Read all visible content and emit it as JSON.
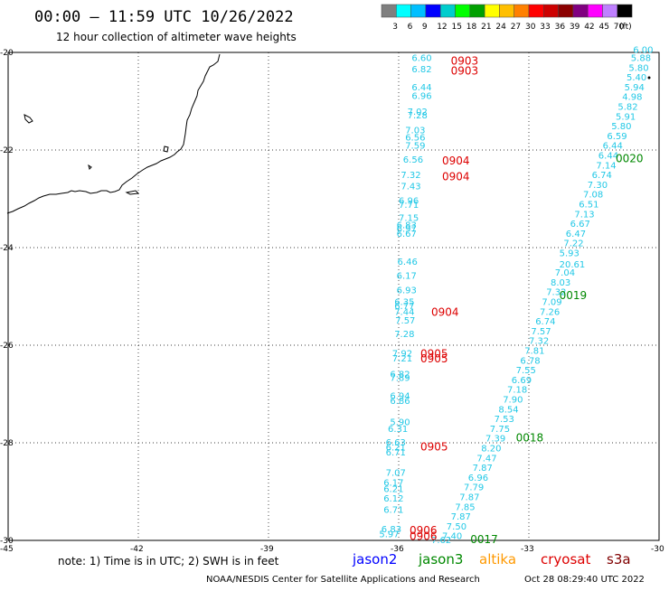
{
  "header": {
    "title": "00:00 – 11:59 UTC 10/26/2022",
    "subtitle": "12 hour collection of altimeter wave heights"
  },
  "colorbar": {
    "colors": [
      "#7f7f7f",
      "#00ffff",
      "#00bfff",
      "#0000ff",
      "#00cdcd",
      "#00ff00",
      "#00a000",
      "#ffff00",
      "#ffbf00",
      "#ff8000",
      "#ff0000",
      "#cd0000",
      "#8b0000",
      "#800080",
      "#ff00ff",
      "#bf80ff",
      "#000000"
    ],
    "labels": [
      "3",
      "6",
      "9",
      "12",
      "15",
      "18",
      "21",
      "24",
      "27",
      "30",
      "33",
      "36",
      "39",
      "42",
      "45",
      "70",
      "(ft)"
    ]
  },
  "chart_data": {
    "type": "scatter",
    "xlim": [
      -45,
      -30
    ],
    "ylim": [
      -30,
      -20
    ],
    "x_ticks": [
      "-45",
      "-42",
      "-39",
      "-36",
      "-33",
      "-30"
    ],
    "y_ticks": [
      "-20",
      "-22",
      "-24",
      "-26",
      "-28",
      "-30"
    ],
    "grid": true,
    "tracks": [
      {
        "satellite": "jason3",
        "points": [
          {
            "x": -35.45,
            "y": -20.12,
            "v": "6.60"
          },
          {
            "x": -35.45,
            "y": -20.35,
            "v": "6.82"
          },
          {
            "x": -35.45,
            "y": -20.72,
            "v": "6.44"
          },
          {
            "x": -35.45,
            "y": -20.9,
            "v": "6.96"
          },
          {
            "x": -35.55,
            "y": -21.22,
            "v": "7.02"
          },
          {
            "x": -35.55,
            "y": -21.3,
            "v": "7.28"
          },
          {
            "x": -35.6,
            "y": -21.6,
            "v": "7.03"
          },
          {
            "x": -35.6,
            "y": -21.75,
            "v": "6.56"
          },
          {
            "x": -35.6,
            "y": -21.92,
            "v": "7.59"
          },
          {
            "x": -35.65,
            "y": -22.2,
            "v": "6.56"
          },
          {
            "x": -35.7,
            "y": -22.52,
            "v": "7.32"
          },
          {
            "x": -35.7,
            "y": -22.75,
            "v": "7.43"
          },
          {
            "x": -35.75,
            "y": -23.05,
            "v": "6.96"
          },
          {
            "x": -35.75,
            "y": -23.13,
            "v": "7.71"
          },
          {
            "x": -35.75,
            "y": -23.4,
            "v": "7.15"
          },
          {
            "x": -35.8,
            "y": -23.55,
            "v": "6.83"
          },
          {
            "x": -35.8,
            "y": -23.62,
            "v": "6.97"
          },
          {
            "x": -35.8,
            "y": -23.72,
            "v": "6.67"
          },
          {
            "x": -35.78,
            "y": -24.3,
            "v": "6.46"
          },
          {
            "x": -35.8,
            "y": -24.58,
            "v": "6.17"
          },
          {
            "x": -35.8,
            "y": -24.88,
            "v": "6.93"
          },
          {
            "x": -35.85,
            "y": -25.12,
            "v": "6.35"
          },
          {
            "x": -35.85,
            "y": -25.2,
            "v": "6.77"
          },
          {
            "x": -35.85,
            "y": -25.32,
            "v": "7.44"
          },
          {
            "x": -35.83,
            "y": -25.5,
            "v": "7.57"
          },
          {
            "x": -35.85,
            "y": -25.78,
            "v": "7.28"
          },
          {
            "x": -35.9,
            "y": -26.18,
            "v": "7.92"
          },
          {
            "x": -35.9,
            "y": -26.28,
            "v": "7.21"
          },
          {
            "x": -35.95,
            "y": -26.6,
            "v": "6.82"
          },
          {
            "x": -35.95,
            "y": -26.68,
            "v": "7.89"
          },
          {
            "x": -35.95,
            "y": -27.05,
            "v": "6.94"
          },
          {
            "x": -35.95,
            "y": -27.15,
            "v": "6.86"
          },
          {
            "x": -35.95,
            "y": -27.58,
            "v": "5.90"
          },
          {
            "x": -36.0,
            "y": -27.72,
            "v": "6.31"
          },
          {
            "x": -36.05,
            "y": -28.0,
            "v": "6.63"
          },
          {
            "x": -36.05,
            "y": -28.1,
            "v": "6.21"
          },
          {
            "x": -36.05,
            "y": -28.2,
            "v": "6.71"
          },
          {
            "x": -36.05,
            "y": -28.62,
            "v": "7.07"
          },
          {
            "x": -36.1,
            "y": -28.82,
            "v": "6.17"
          },
          {
            "x": -36.1,
            "y": -28.95,
            "v": "6.21"
          },
          {
            "x": -36.1,
            "y": -29.15,
            "v": "6.12"
          },
          {
            "x": -36.1,
            "y": -29.38,
            "v": "6.71"
          },
          {
            "x": -36.15,
            "y": -29.78,
            "v": "6.83"
          },
          {
            "x": -36.2,
            "y": -29.88,
            "v": "5.97"
          },
          {
            "x": -30.35,
            "y": -19.95,
            "v": "6.00"
          },
          {
            "x": -30.4,
            "y": -20.12,
            "v": "5.88"
          },
          {
            "x": -30.45,
            "y": -20.32,
            "v": "5.80"
          },
          {
            "x": -30.5,
            "y": -20.52,
            "v": "5.40"
          },
          {
            "x": -30.55,
            "y": -20.72,
            "v": "5.94"
          },
          {
            "x": -30.6,
            "y": -20.92,
            "v": "4.98"
          },
          {
            "x": -30.7,
            "y": -21.12,
            "v": "5.82"
          },
          {
            "x": -30.75,
            "y": -21.32,
            "v": "5.91"
          },
          {
            "x": -30.85,
            "y": -21.52,
            "v": "5.80"
          },
          {
            "x": -30.95,
            "y": -21.72,
            "v": "6.59"
          },
          {
            "x": -31.05,
            "y": -21.92,
            "v": "6.44"
          },
          {
            "x": -31.15,
            "y": -22.12,
            "v": "6.44"
          },
          {
            "x": -31.2,
            "y": -22.32,
            "v": "7.14"
          },
          {
            "x": -31.3,
            "y": -22.52,
            "v": "6.74"
          },
          {
            "x": -31.4,
            "y": -22.72,
            "v": "7.30"
          },
          {
            "x": -31.5,
            "y": -22.92,
            "v": "7.08"
          },
          {
            "x": -31.6,
            "y": -23.12,
            "v": "6.51"
          },
          {
            "x": -31.7,
            "y": -23.32,
            "v": "7.13"
          },
          {
            "x": -31.8,
            "y": -23.52,
            "v": "6.67"
          },
          {
            "x": -31.9,
            "y": -23.72,
            "v": "6.47"
          },
          {
            "x": -31.95,
            "y": -23.92,
            "v": "7.22"
          },
          {
            "x": -32.05,
            "y": -24.12,
            "v": "5.93"
          },
          {
            "x": -32.15,
            "y": -24.52,
            "v": "7.04"
          },
          {
            "x": -32.25,
            "y": -24.72,
            "v": "8.03"
          },
          {
            "x": -32.35,
            "y": -24.92,
            "v": "7.32"
          },
          {
            "x": -32.45,
            "y": -25.12,
            "v": "7.09"
          },
          {
            "x": -32.5,
            "y": -25.32,
            "v": "7.26"
          },
          {
            "x": -32.6,
            "y": -25.52,
            "v": "6.74"
          },
          {
            "x": -32.7,
            "y": -25.72,
            "v": "7.57"
          },
          {
            "x": -32.75,
            "y": -25.92,
            "v": "7.32"
          },
          {
            "x": -32.85,
            "y": -26.12,
            "v": "7.81"
          },
          {
            "x": -32.95,
            "y": -26.32,
            "v": "6.78"
          },
          {
            "x": -33.05,
            "y": -26.52,
            "v": "7.55"
          },
          {
            "x": -33.15,
            "y": -26.72,
            "v": "6.69"
          },
          {
            "x": -33.25,
            "y": -26.92,
            "v": "7.18"
          },
          {
            "x": -33.35,
            "y": -27.12,
            "v": "7.90"
          },
          {
            "x": -33.45,
            "y": -27.32,
            "v": "8.54"
          },
          {
            "x": -33.55,
            "y": -27.52,
            "v": "7.53"
          },
          {
            "x": -33.65,
            "y": -27.72,
            "v": "7.75"
          },
          {
            "x": -33.75,
            "y": -27.92,
            "v": "7.39"
          },
          {
            "x": -33.85,
            "y": -28.12,
            "v": "8.20"
          },
          {
            "x": -33.95,
            "y": -28.32,
            "v": "7.47"
          },
          {
            "x": -34.05,
            "y": -28.52,
            "v": "7.87"
          },
          {
            "x": -34.15,
            "y": -28.72,
            "v": "6.96"
          },
          {
            "x": -34.25,
            "y": -28.92,
            "v": "7.79"
          },
          {
            "x": -34.35,
            "y": -29.12,
            "v": "7.87"
          },
          {
            "x": -34.45,
            "y": -29.32,
            "v": "7.85"
          },
          {
            "x": -34.55,
            "y": -29.52,
            "v": "7.87"
          },
          {
            "x": -34.65,
            "y": -29.72,
            "v": "7.50"
          },
          {
            "x": -34.75,
            "y": -29.92,
            "v": "7.40"
          },
          {
            "x": -35.0,
            "y": -30.0,
            "v": "7.62"
          }
        ]
      },
      {
        "satellite": "jason3",
        "points": [
          {
            "x": -32.05,
            "y": -24.35,
            "v": "20.61",
            "color": "#008800"
          }
        ]
      }
    ],
    "pass_labels": [
      {
        "x": -34.8,
        "y": -20.18,
        "text": "0903",
        "color": "#dd0000"
      },
      {
        "x": -34.8,
        "y": -20.38,
        "text": "0903",
        "color": "#dd0000"
      },
      {
        "x": -35.0,
        "y": -22.22,
        "text": "0904",
        "color": "#dd0000"
      },
      {
        "x": -35.0,
        "y": -22.55,
        "text": "0904",
        "color": "#dd0000"
      },
      {
        "x": -35.25,
        "y": -25.32,
        "text": "0904",
        "color": "#dd0000"
      },
      {
        "x": -35.5,
        "y": -26.18,
        "text": "0905",
        "color": "#dd0000"
      },
      {
        "x": -35.5,
        "y": -26.28,
        "text": "0905",
        "color": "#dd0000"
      },
      {
        "x": -35.5,
        "y": -28.08,
        "text": "0905",
        "color": "#dd0000"
      },
      {
        "x": -35.75,
        "y": -29.8,
        "text": "0906",
        "color": "#dd0000"
      },
      {
        "x": -35.75,
        "y": -29.92,
        "text": "0906",
        "color": "#dd0000"
      },
      {
        "x": -31.0,
        "y": -22.18,
        "text": "0020",
        "color": "#008800"
      },
      {
        "x": -32.3,
        "y": -24.98,
        "text": "0019",
        "color": "#008800"
      },
      {
        "x": -33.3,
        "y": -27.9,
        "text": "0018",
        "color": "#008800"
      },
      {
        "x": -34.35,
        "y": -29.98,
        "text": "0017",
        "color": "#008800"
      }
    ]
  },
  "footer": {
    "note": "note: 1) Time is in UTC; 2) SWH is in feet",
    "satellites": [
      {
        "name": "jason2",
        "color": "#0000ff"
      },
      {
        "name": "jason3",
        "color": "#008800"
      },
      {
        "name": "altika",
        "color": "#ff9900"
      },
      {
        "name": "cryosat",
        "color": "#dd0000"
      },
      {
        "name": "s3a",
        "color": "#800000"
      }
    ],
    "credit": "NOAA/NESDIS Center for Satellite Applications and Research",
    "timestamp": "Oct 28 08:29:40 UTC 2022"
  }
}
